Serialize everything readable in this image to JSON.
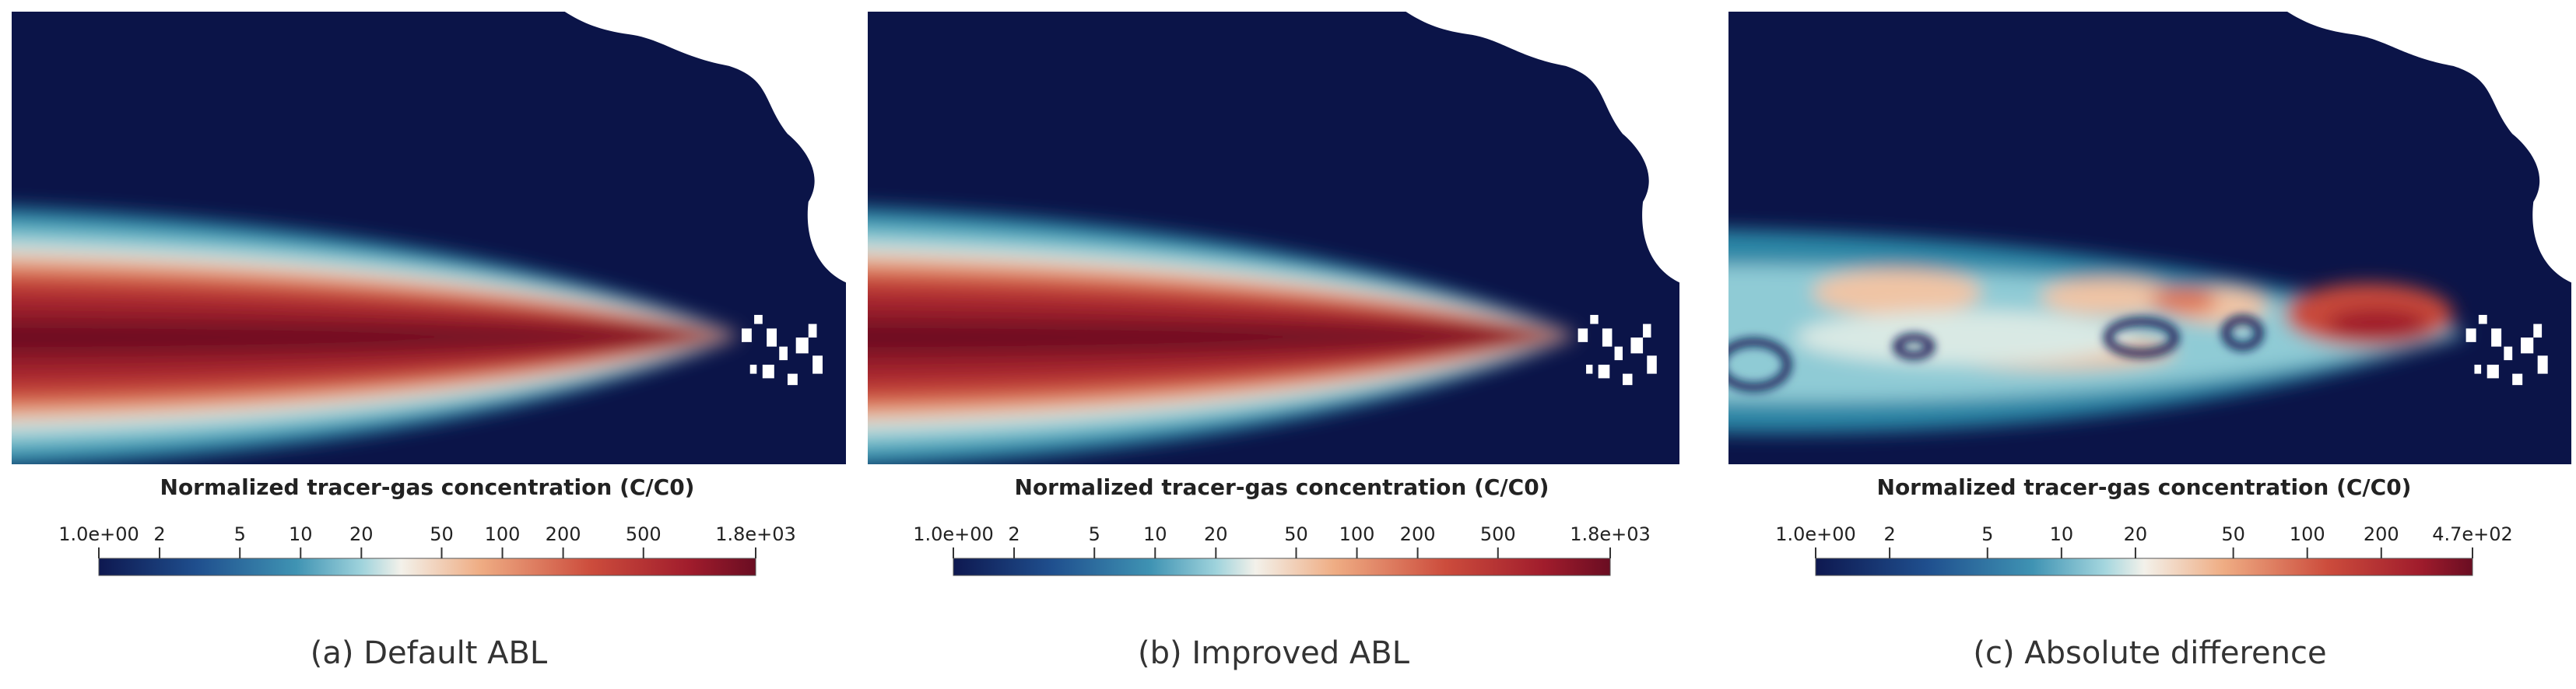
{
  "panels": [
    {
      "colorbar": {
        "title": "Normalized tracer-gas concentration (C/C0)",
        "ticks": [
          {
            "value": 1,
            "label": "1.0e+00"
          },
          2,
          5,
          10,
          20,
          50,
          100,
          200,
          500,
          {
            "value": 1800,
            "label": "1.8e+03"
          }
        ]
      },
      "caption": "(a) Default ABL"
    },
    {
      "colorbar": {
        "title": "Normalized tracer-gas concentration (C/C0)",
        "ticks": [
          {
            "value": 1,
            "label": "1.0e+00"
          },
          2,
          5,
          10,
          20,
          50,
          100,
          200,
          500,
          {
            "value": 1800,
            "label": "1.8e+03"
          }
        ]
      },
      "caption": "(b) Improved ABL"
    },
    {
      "colorbar": {
        "title": "Normalized tracer-gas concentration (C/C0)",
        "ticks": [
          {
            "value": 1,
            "label": "1.0e+00"
          },
          2,
          5,
          10,
          20,
          50,
          100,
          200,
          {
            "value": 470,
            "label": "4.7e+02"
          }
        ]
      },
      "caption": "(c) Absolute difference"
    }
  ]
}
